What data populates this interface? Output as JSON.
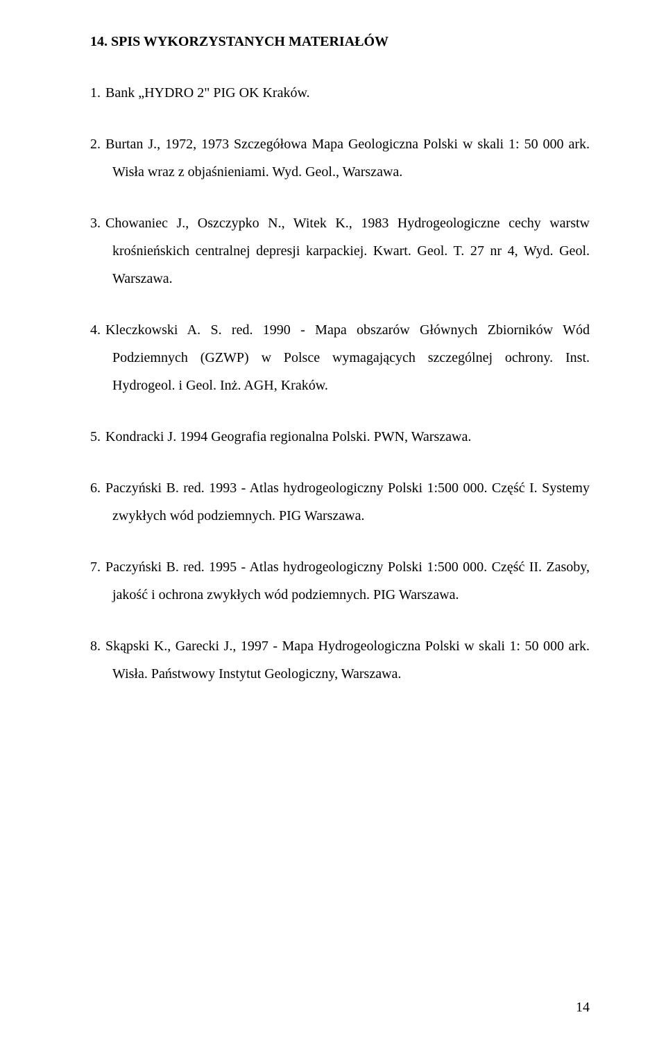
{
  "heading": "14. SPIS WYKORZYSTANYCH MATERIAŁÓW",
  "entries": [
    {
      "num": "1.",
      "text": "Bank „HYDRO 2\" PIG OK  Kraków."
    },
    {
      "num": "2.",
      "text": "Burtan J., 1972, 1973 Szczegółowa Mapa Geologiczna Polski w skali 1: 50 000 ark. Wisła wraz z objaśnieniami. Wyd. Geol., Warszawa."
    },
    {
      "num": "3.",
      "text": "Chowaniec J., Oszczypko N., Witek K., 1983 Hydrogeologiczne cechy warstw krośnieńskich centralnej depresji karpackiej. Kwart. Geol. T. 27 nr 4, Wyd. Geol. Warszawa."
    },
    {
      "num": "4.",
      "text": "Kleczkowski A. S. red. 1990 - Mapa obszarów Głównych Zbiorników Wód Podziemnych (GZWP) w Polsce wymagających szczególnej ochrony.  Inst. Hydrogeol. i Geol. Inż. AGH,  Kraków."
    },
    {
      "num": "5.",
      "text": "Kondracki J. 1994 Geografia regionalna Polski.  PWN, Warszawa."
    },
    {
      "num": "6.",
      "text": "Paczyński B. red. 1993 - Atlas hydrogeologiczny Polski 1:500 000. Część I. Systemy zwykłych wód podziemnych. PIG Warszawa."
    },
    {
      "num": "7.",
      "text": "Paczyński B. red. 1995 - Atlas hydrogeologiczny Polski 1:500 000. Część II. Zasoby, jakość i ochrona zwykłych wód podziemnych. PIG Warszawa."
    },
    {
      "num": "8.",
      "text": "Skąpski K., Garecki J., 1997 - Mapa Hydrogeologiczna Polski w skali 1: 50 000 ark. Wisła. Państwowy Instytut Geologiczny, Warszawa."
    }
  ],
  "pageNumber": "14"
}
